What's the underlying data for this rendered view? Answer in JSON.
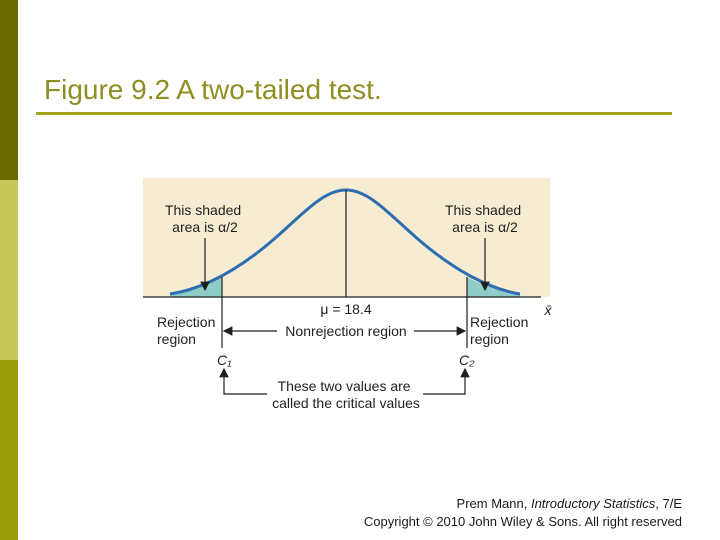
{
  "slide": {
    "title": "Figure 9.2 A two-tailed test.",
    "colors": {
      "title_text": "#8e8e23",
      "rule": "#a3a317",
      "bar_dark": "#6b6b00",
      "bar_light": "#c8c85a",
      "bar_mid": "#9c9c08"
    }
  },
  "figure": {
    "left_tail_label": [
      "This shaded",
      "area is α/2"
    ],
    "right_tail_label": [
      "This shaded",
      "area is α/2"
    ],
    "mean_label": "μ = 18.4",
    "axis_symbol": "x̄",
    "left_region_label": [
      "Rejection",
      "region"
    ],
    "right_region_label": [
      "Rejection",
      "region"
    ],
    "middle_region_label": "Nonrejection region",
    "critical_left": "C₁",
    "critical_right": "C₂",
    "critical_note": [
      "These two values are",
      "called the critical values"
    ],
    "colors": {
      "panel_bg": "#f6ecd2",
      "curve": "#2f6db1",
      "tail_fill": "#8fcdc8",
      "ink": "#1f1f1f"
    }
  },
  "credit": {
    "author": "Prem Mann, ",
    "book": "Introductory Statistics",
    "edition": ", 7/E",
    "copyright": "Copyright © 2010 John Wiley & Sons. All right reserved"
  }
}
